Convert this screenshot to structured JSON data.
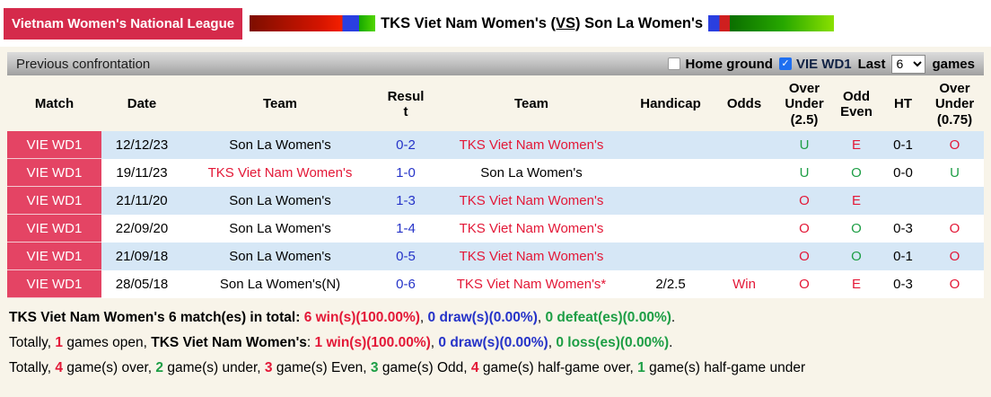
{
  "palette": {
    "badge_red": "#d52a4b",
    "match_cell_red": "#e44464",
    "team_red": "#e31837",
    "score_blue": "#2533c8",
    "letter_green": "#1d9e45",
    "row_light_blue": "#d6e7f6",
    "checkbox_blue": "#1f6ff0",
    "page_beige": "#f8f4e9"
  },
  "header": {
    "league": "Vietnam Women's National League",
    "home_team": "TKS Viet Nam Women's",
    "vs": "(VS)",
    "away_team": "Son La Women's"
  },
  "toolbar": {
    "title": "Previous confrontation",
    "home_ground_label": "Home ground",
    "home_ground_checked": false,
    "league_label": "VIE WD1",
    "league_checked": true,
    "last_label": "Last",
    "games_count": "6",
    "games_label": "games"
  },
  "table": {
    "headers": [
      "Match",
      "Date",
      "Team",
      "Resul\nt",
      "Team",
      "Handicap",
      "Odds",
      "Over\nUnder\n(2.5)",
      "Odd\nEven",
      "HT",
      "Over\nUnder\n(0.75)"
    ],
    "rows": [
      {
        "match": "VIE WD1",
        "date": "12/12/23",
        "home": {
          "text": "Son La Women's",
          "color": "black"
        },
        "score": "0-2",
        "away": {
          "text": "TKS Viet Nam Women's",
          "color": "red"
        },
        "handicap": "",
        "odds": {
          "text": "",
          "color": ""
        },
        "over_under_25": {
          "text": "U",
          "color": "green"
        },
        "odd_even": {
          "text": "E",
          "color": "red"
        },
        "ht": "0-1",
        "over_under_075": {
          "text": "O",
          "color": "red"
        }
      },
      {
        "match": "VIE WD1",
        "date": "19/11/23",
        "home": {
          "text": "TKS Viet Nam Women's",
          "color": "red"
        },
        "score": "1-0",
        "away": {
          "text": "Son La Women's",
          "color": "black"
        },
        "handicap": "",
        "odds": {
          "text": "",
          "color": ""
        },
        "over_under_25": {
          "text": "U",
          "color": "green"
        },
        "odd_even": {
          "text": "O",
          "color": "green"
        },
        "ht": "0-0",
        "over_under_075": {
          "text": "U",
          "color": "green"
        }
      },
      {
        "match": "VIE WD1",
        "date": "21/11/20",
        "home": {
          "text": "Son La Women's",
          "color": "black"
        },
        "score": "1-3",
        "away": {
          "text": "TKS Viet Nam Women's",
          "color": "red"
        },
        "handicap": "",
        "odds": {
          "text": "",
          "color": ""
        },
        "over_under_25": {
          "text": "O",
          "color": "red"
        },
        "odd_even": {
          "text": "E",
          "color": "red"
        },
        "ht": "",
        "over_under_075": {
          "text": "",
          "color": ""
        }
      },
      {
        "match": "VIE WD1",
        "date": "22/09/20",
        "home": {
          "text": "Son La Women's",
          "color": "black"
        },
        "score": "1-4",
        "away": {
          "text": "TKS Viet Nam Women's",
          "color": "red"
        },
        "handicap": "",
        "odds": {
          "text": "",
          "color": ""
        },
        "over_under_25": {
          "text": "O",
          "color": "red"
        },
        "odd_even": {
          "text": "O",
          "color": "green"
        },
        "ht": "0-3",
        "over_under_075": {
          "text": "O",
          "color": "red"
        }
      },
      {
        "match": "VIE WD1",
        "date": "21/09/18",
        "home": {
          "text": "Son La Women's",
          "color": "black"
        },
        "score": "0-5",
        "away": {
          "text": "TKS Viet Nam Women's",
          "color": "red"
        },
        "handicap": "",
        "odds": {
          "text": "",
          "color": ""
        },
        "over_under_25": {
          "text": "O",
          "color": "red"
        },
        "odd_even": {
          "text": "O",
          "color": "green"
        },
        "ht": "0-1",
        "over_under_075": {
          "text": "O",
          "color": "red"
        }
      },
      {
        "match": "VIE WD1",
        "date": "28/05/18",
        "home": {
          "text": "Son La Women's(N)",
          "color": "black"
        },
        "score": "0-6",
        "away": {
          "text": "TKS Viet Nam Women's*",
          "color": "red"
        },
        "handicap": "2/2.5",
        "odds": {
          "text": "Win",
          "color": "red"
        },
        "over_under_25": {
          "text": "O",
          "color": "red"
        },
        "odd_even": {
          "text": "E",
          "color": "red"
        },
        "ht": "0-3",
        "over_under_075": {
          "text": "O",
          "color": "red"
        }
      }
    ]
  },
  "summary": [
    [
      {
        "t": "TKS Viet Nam Women's ",
        "bold": true
      },
      {
        "t": "6 match(es) in total: ",
        "bold": true
      },
      {
        "t": "6 win(s)(100.00%)",
        "c": "red",
        "bold": true
      },
      {
        "t": ", "
      },
      {
        "t": "0 draw(s)(0.00%)",
        "c": "blue",
        "bold": true
      },
      {
        "t": ", "
      },
      {
        "t": "0 defeat(es)(0.00%)",
        "c": "green",
        "bold": true
      },
      {
        "t": "."
      }
    ],
    [
      {
        "t": "Totally, "
      },
      {
        "t": "1",
        "c": "red",
        "bold": true
      },
      {
        "t": " games open, "
      },
      {
        "t": "TKS Viet Nam Women's",
        "bold": true
      },
      {
        "t": ": "
      },
      {
        "t": "1 win(s)(100.00%)",
        "c": "red",
        "bold": true
      },
      {
        "t": ", "
      },
      {
        "t": "0 draw(s)(0.00%)",
        "c": "blue",
        "bold": true
      },
      {
        "t": ", "
      },
      {
        "t": "0 loss(es)(0.00%)",
        "c": "green",
        "bold": true
      },
      {
        "t": "."
      }
    ],
    [
      {
        "t": "Totally, "
      },
      {
        "t": "4",
        "c": "red",
        "bold": true
      },
      {
        "t": " game(s) over, "
      },
      {
        "t": "2",
        "c": "green",
        "bold": true
      },
      {
        "t": " game(s) under, "
      },
      {
        "t": "3",
        "c": "red",
        "bold": true
      },
      {
        "t": " game(s) Even, "
      },
      {
        "t": "3",
        "c": "green",
        "bold": true
      },
      {
        "t": " game(s) Odd, "
      },
      {
        "t": "4",
        "c": "red",
        "bold": true
      },
      {
        "t": " game(s) half-game over, "
      },
      {
        "t": "1",
        "c": "green",
        "bold": true
      },
      {
        "t": " game(s) half-game under"
      }
    ]
  ]
}
